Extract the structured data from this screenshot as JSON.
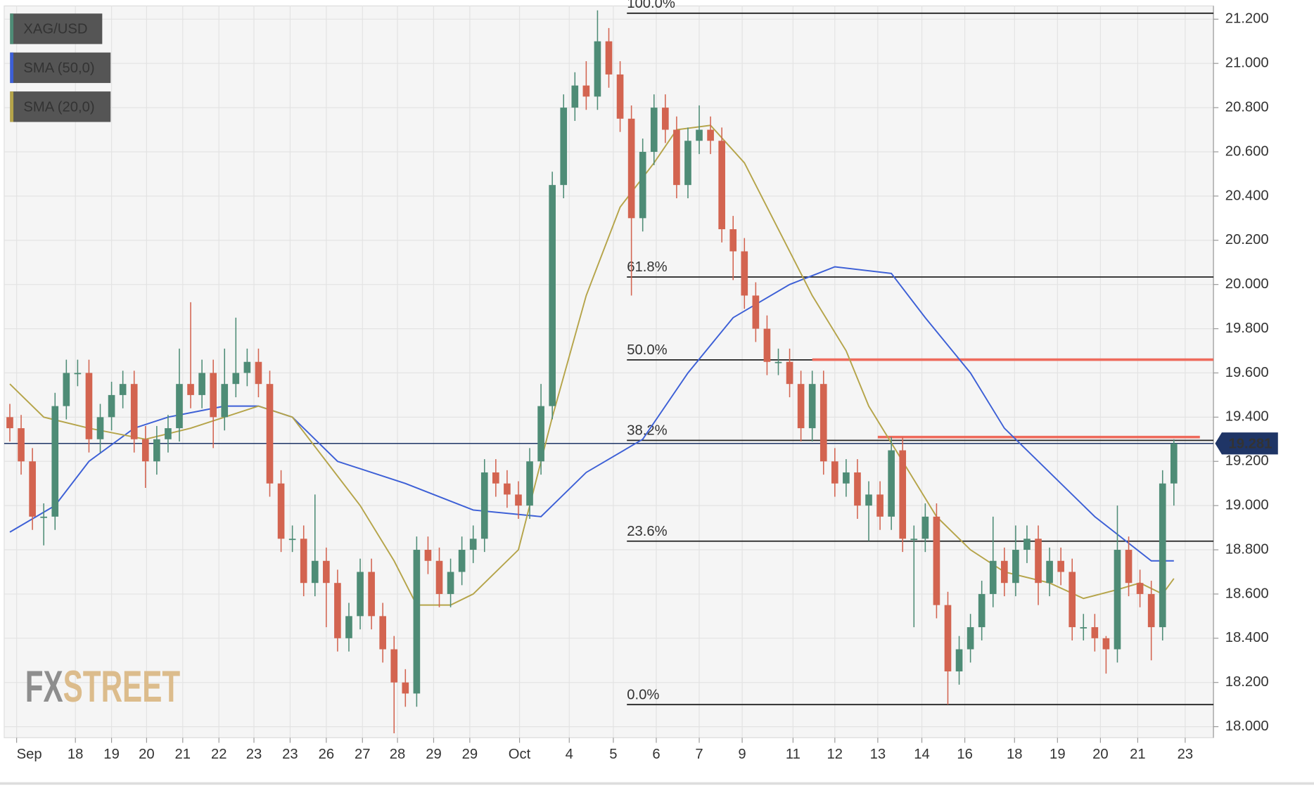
{
  "chart_data": {
    "type": "candlestick",
    "xlim": [
      -0.5,
      106.5
    ],
    "ylim": [
      17.95,
      21.26
    ],
    "xticks": [
      {
        "value": 0.6,
        "label": "Sep"
      },
      {
        "value": 5.8,
        "label": "18"
      },
      {
        "value": 9.0,
        "label": "19"
      },
      {
        "value": 12.1,
        "label": "20"
      },
      {
        "value": 15.3,
        "label": "21"
      },
      {
        "value": 18.5,
        "label": "22"
      },
      {
        "value": 21.6,
        "label": "23"
      },
      {
        "value": 24.8,
        "label": "23"
      },
      {
        "value": 28.0,
        "label": "26"
      },
      {
        "value": 31.2,
        "label": "27"
      },
      {
        "value": 34.3,
        "label": "28"
      },
      {
        "value": 37.5,
        "label": "29"
      },
      {
        "value": 40.7,
        "label": "29"
      },
      {
        "value": 45.1,
        "label": "Oct"
      },
      {
        "value": 49.5,
        "label": "4"
      },
      {
        "value": 53.4,
        "label": "5"
      },
      {
        "value": 57.2,
        "label": "6"
      },
      {
        "value": 61.0,
        "label": "7"
      },
      {
        "value": 64.8,
        "label": "9"
      },
      {
        "value": 69.3,
        "label": "11"
      },
      {
        "value": 73.0,
        "label": "12"
      },
      {
        "value": 76.8,
        "label": "13"
      },
      {
        "value": 80.7,
        "label": "14"
      },
      {
        "value": 84.5,
        "label": "16"
      },
      {
        "value": 88.9,
        "label": "18"
      },
      {
        "value": 92.7,
        "label": "19"
      },
      {
        "value": 96.5,
        "label": "20"
      },
      {
        "value": 99.8,
        "label": "21"
      },
      {
        "value": 104.0,
        "label": "23"
      }
    ],
    "yticks": [
      {
        "value": 18.0,
        "label": "18.000"
      },
      {
        "value": 18.2,
        "label": "18.200"
      },
      {
        "value": 18.4,
        "label": "18.400"
      },
      {
        "value": 18.6,
        "label": "18.600"
      },
      {
        "value": 18.8,
        "label": "18.800"
      },
      {
        "value": 19.0,
        "label": "19.000"
      },
      {
        "value": 19.2,
        "label": "19.200"
      },
      {
        "value": 19.4,
        "label": "19.400"
      },
      {
        "value": 19.6,
        "label": "19.600"
      },
      {
        "value": 19.8,
        "label": "19.800"
      },
      {
        "value": 20.0,
        "label": "20.000"
      },
      {
        "value": 20.2,
        "label": "20.200"
      },
      {
        "value": 20.4,
        "label": "20.400"
      },
      {
        "value": 20.6,
        "label": "20.600"
      },
      {
        "value": 20.8,
        "label": "20.800"
      },
      {
        "value": 21.0,
        "label": "21.000"
      },
      {
        "value": 21.2,
        "label": "21.200"
      }
    ],
    "grid": true,
    "last_price": 19.281,
    "last_price_color": "#1f3566",
    "series": [
      {
        "name": "XAG/USD",
        "up_color": "#4e8c76",
        "down_color": "#d36450",
        "open": [
          19.4,
          19.35,
          19.2,
          18.95,
          18.95,
          19.45,
          19.6,
          19.6,
          19.3,
          19.4,
          19.5,
          19.55,
          19.3,
          19.2,
          19.3,
          19.35,
          19.55,
          19.5,
          19.6,
          19.4,
          19.55,
          19.6,
          19.65,
          19.55,
          19.1,
          18.85,
          18.85,
          18.65,
          18.75,
          18.65,
          18.4,
          18.5,
          18.7,
          18.5,
          18.35,
          18.2,
          18.15,
          18.8,
          18.75,
          18.6,
          18.7,
          18.8,
          18.85,
          19.15,
          19.1,
          19.05,
          19.0,
          19.2,
          19.45,
          20.45,
          20.8,
          20.9,
          20.85,
          21.1,
          20.95,
          20.75,
          20.3,
          20.6,
          20.8,
          20.7,
          20.45,
          20.65,
          20.7,
          20.65,
          20.25,
          20.15,
          19.95,
          19.8,
          19.65,
          19.65,
          19.55,
          19.35,
          19.55,
          19.2,
          19.1,
          19.15,
          19.0,
          19.05,
          18.95,
          19.25,
          18.85,
          18.85,
          18.95,
          18.55,
          18.25,
          18.35,
          18.45,
          18.6,
          18.75,
          18.65,
          18.8,
          18.85,
          18.65,
          18.75,
          18.7,
          18.45,
          18.45,
          18.4,
          18.35,
          18.8,
          18.65,
          18.6,
          18.45,
          19.1
        ],
        "high": [
          19.46,
          19.41,
          19.26,
          19.01,
          19.51,
          19.66,
          19.66,
          19.66,
          19.46,
          19.56,
          19.61,
          19.61,
          19.36,
          19.36,
          19.41,
          19.71,
          19.92,
          19.66,
          19.66,
          19.71,
          19.85,
          19.71,
          19.71,
          19.61,
          19.16,
          18.91,
          18.91,
          19.05,
          18.81,
          18.71,
          18.56,
          18.76,
          18.76,
          18.56,
          18.41,
          18.26,
          18.86,
          18.86,
          18.81,
          18.76,
          18.86,
          18.91,
          19.21,
          19.21,
          19.16,
          19.11,
          19.26,
          19.55,
          20.51,
          20.86,
          20.96,
          21.01,
          21.24,
          21.16,
          21.01,
          20.81,
          20.66,
          20.86,
          20.86,
          20.76,
          20.71,
          20.81,
          20.76,
          20.71,
          20.31,
          20.21,
          20.01,
          19.86,
          19.71,
          19.71,
          19.61,
          19.61,
          19.61,
          19.26,
          19.21,
          19.21,
          19.11,
          19.11,
          19.31,
          19.31,
          18.91,
          19.01,
          19.01,
          18.61,
          18.41,
          18.51,
          18.66,
          18.95,
          18.81,
          18.91,
          18.91,
          18.91,
          18.81,
          18.81,
          18.76,
          18.51,
          18.51,
          18.41,
          19.0,
          18.86,
          18.71,
          18.66,
          19.16,
          19.3
        ],
        "low": [
          19.29,
          19.14,
          18.89,
          18.82,
          18.89,
          19.39,
          19.54,
          19.24,
          19.24,
          19.34,
          19.44,
          19.24,
          19.08,
          19.14,
          19.24,
          19.29,
          19.44,
          19.44,
          19.26,
          19.34,
          19.49,
          19.54,
          19.49,
          19.04,
          18.79,
          18.79,
          18.59,
          18.59,
          18.45,
          18.34,
          18.34,
          18.44,
          18.44,
          18.29,
          17.97,
          18.09,
          18.09,
          18.69,
          18.54,
          18.54,
          18.64,
          18.74,
          18.79,
          19.04,
          18.99,
          18.94,
          18.94,
          19.14,
          19.39,
          20.39,
          20.74,
          20.79,
          20.79,
          20.89,
          20.69,
          19.95,
          20.24,
          20.54,
          20.64,
          20.39,
          20.39,
          20.59,
          20.59,
          20.19,
          20.02,
          19.89,
          19.74,
          19.59,
          19.59,
          19.49,
          19.29,
          19.29,
          19.14,
          19.04,
          19.04,
          18.94,
          18.84,
          18.89,
          18.89,
          18.79,
          18.45,
          18.79,
          18.49,
          18.1,
          18.19,
          18.29,
          18.39,
          18.54,
          18.59,
          18.59,
          18.74,
          18.55,
          18.59,
          18.64,
          18.39,
          18.39,
          18.34,
          18.24,
          18.29,
          18.59,
          18.54,
          18.3,
          18.39,
          19.0
        ],
        "close": [
          19.35,
          19.2,
          18.95,
          18.95,
          19.45,
          19.6,
          19.6,
          19.3,
          19.4,
          19.5,
          19.55,
          19.3,
          19.2,
          19.3,
          19.35,
          19.55,
          19.5,
          19.6,
          19.4,
          19.55,
          19.6,
          19.65,
          19.55,
          19.1,
          18.85,
          18.85,
          18.65,
          18.75,
          18.65,
          18.4,
          18.5,
          18.7,
          18.5,
          18.35,
          18.2,
          18.15,
          18.8,
          18.75,
          18.6,
          18.7,
          18.8,
          18.85,
          19.15,
          19.1,
          19.05,
          19.0,
          19.2,
          19.45,
          20.45,
          20.8,
          20.9,
          20.85,
          21.1,
          20.95,
          20.75,
          20.3,
          20.6,
          20.8,
          20.7,
          20.45,
          20.65,
          20.7,
          20.65,
          20.25,
          20.15,
          19.95,
          19.8,
          19.65,
          19.65,
          19.55,
          19.35,
          19.55,
          19.2,
          19.1,
          19.15,
          19.0,
          19.05,
          18.95,
          19.25,
          18.85,
          18.85,
          18.95,
          18.55,
          18.25,
          18.35,
          18.45,
          18.6,
          18.75,
          18.65,
          18.8,
          18.85,
          18.65,
          18.75,
          18.7,
          18.45,
          18.45,
          18.4,
          18.35,
          18.8,
          18.65,
          18.6,
          18.45,
          19.1,
          19.281
        ]
      },
      {
        "name": "SMA (50,0)",
        "color": "#3c5fd6",
        "x": [
          0,
          4,
          7,
          11,
          14,
          19,
          22,
          25,
          29,
          35,
          41,
          47,
          51,
          56,
          60,
          64,
          69,
          73,
          78,
          81,
          85,
          88,
          92,
          96,
          99,
          101,
          103
        ],
        "values": [
          18.88,
          19.0,
          19.2,
          19.35,
          19.4,
          19.45,
          19.45,
          19.4,
          19.2,
          19.1,
          18.98,
          18.95,
          19.15,
          19.3,
          19.6,
          19.85,
          20.0,
          20.08,
          20.05,
          19.85,
          19.6,
          19.35,
          19.15,
          18.95,
          18.83,
          18.75,
          18.75
        ]
      },
      {
        "name": "SMA (20,0)",
        "color": "#b5a449",
        "x": [
          0,
          3,
          7,
          12,
          16,
          22,
          25,
          28,
          31,
          34,
          36,
          39,
          41,
          45,
          48,
          51,
          54,
          57,
          59,
          62,
          65,
          68,
          71,
          74,
          76,
          79,
          82,
          85,
          88,
          92,
          95,
          98,
          100,
          102,
          103
        ],
        "values": [
          19.55,
          19.4,
          19.35,
          19.3,
          19.35,
          19.45,
          19.4,
          19.2,
          19.0,
          18.75,
          18.55,
          18.55,
          18.6,
          18.8,
          19.4,
          19.95,
          20.35,
          20.55,
          20.7,
          20.72,
          20.55,
          20.25,
          19.95,
          19.7,
          19.45,
          19.2,
          18.95,
          18.8,
          18.7,
          18.65,
          18.58,
          18.62,
          18.65,
          18.6,
          18.67
        ]
      }
    ],
    "fibonacci": {
      "x_start": 54.6,
      "color": "#222222",
      "levels": [
        {
          "label": "100.0%",
          "value": 21.227
        },
        {
          "label": "61.8%",
          "value": 20.034
        },
        {
          "label": "50.0%",
          "value": 19.659
        },
        {
          "label": "38.2%",
          "value": 19.295
        },
        {
          "label": "23.6%",
          "value": 18.839
        },
        {
          "label": "0.0%",
          "value": 18.1
        }
      ]
    },
    "resistance_lines": {
      "color": "#ee6a5c",
      "lines": [
        {
          "value": 19.66,
          "x": [
            71.0,
            106.5
          ]
        },
        {
          "value": 19.31,
          "x": [
            76.8,
            105.3
          ]
        }
      ]
    },
    "watermark": {
      "prefix": "FX",
      "suffix": "STREET"
    }
  }
}
